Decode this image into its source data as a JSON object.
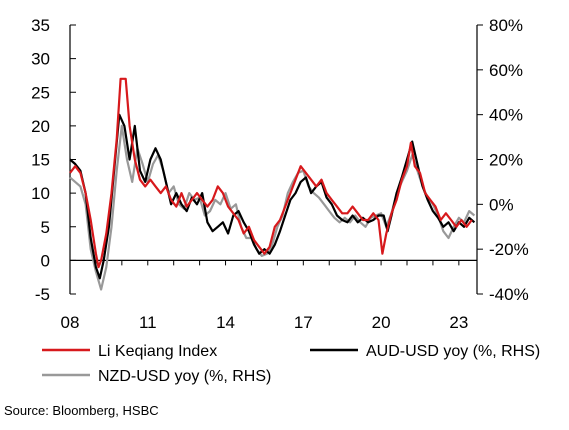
{
  "chart_data": {
    "type": "line",
    "x_tick_labels": [
      "08",
      "11",
      "14",
      "17",
      "20",
      "23"
    ],
    "x_tick_years": [
      2008,
      2011,
      2014,
      2017,
      2020,
      2023
    ],
    "xlim": [
      2008,
      2023.7
    ],
    "left_axis": {
      "ylim": [
        -5,
        35
      ],
      "ticks": [
        -5,
        0,
        5,
        10,
        15,
        20,
        25,
        30,
        35
      ],
      "tick_labels": [
        "-5",
        "0",
        "5",
        "10",
        "15",
        "20",
        "25",
        "30",
        "35"
      ]
    },
    "right_axis": {
      "ylim": [
        -40,
        80
      ],
      "ticks": [
        -40,
        -20,
        0,
        20,
        40,
        60,
        80
      ],
      "tick_labels": [
        "-40%",
        "-20%",
        "0%",
        "20%",
        "40%",
        "60%",
        "80%"
      ]
    },
    "grid": false,
    "legend_position": "bottom",
    "source": "Source: Bloomberg, HSBC",
    "series": [
      {
        "name": "Li Keqiang Index",
        "axis": "left",
        "color": "#d7191c",
        "points": [
          [
            2008.0,
            13
          ],
          [
            2008.2,
            14
          ],
          [
            2008.4,
            13
          ],
          [
            2008.6,
            10
          ],
          [
            2008.8,
            6
          ],
          [
            2009.0,
            1
          ],
          [
            2009.1,
            -1
          ],
          [
            2009.2,
            0
          ],
          [
            2009.4,
            4
          ],
          [
            2009.6,
            10
          ],
          [
            2009.8,
            18
          ],
          [
            2009.95,
            27
          ],
          [
            2010.15,
            27
          ],
          [
            2010.3,
            20
          ],
          [
            2010.5,
            15
          ],
          [
            2010.7,
            12
          ],
          [
            2010.9,
            11
          ],
          [
            2011.1,
            12
          ],
          [
            2011.3,
            11
          ],
          [
            2011.5,
            10
          ],
          [
            2011.7,
            11
          ],
          [
            2011.9,
            9
          ],
          [
            2012.1,
            8
          ],
          [
            2012.3,
            10
          ],
          [
            2012.5,
            8
          ],
          [
            2012.7,
            9
          ],
          [
            2012.9,
            10
          ],
          [
            2013.1,
            9
          ],
          [
            2013.3,
            8
          ],
          [
            2013.5,
            9
          ],
          [
            2013.7,
            11
          ],
          [
            2013.9,
            10
          ],
          [
            2014.1,
            8
          ],
          [
            2014.3,
            7
          ],
          [
            2014.5,
            6
          ],
          [
            2014.7,
            4
          ],
          [
            2014.9,
            5
          ],
          [
            2015.1,
            3
          ],
          [
            2015.3,
            2
          ],
          [
            2015.5,
            1
          ],
          [
            2015.7,
            2
          ],
          [
            2015.9,
            5
          ],
          [
            2016.1,
            6
          ],
          [
            2016.3,
            8
          ],
          [
            2016.5,
            10
          ],
          [
            2016.7,
            12
          ],
          [
            2016.9,
            14
          ],
          [
            2017.1,
            13
          ],
          [
            2017.3,
            12
          ],
          [
            2017.5,
            11
          ],
          [
            2017.7,
            12
          ],
          [
            2017.9,
            10
          ],
          [
            2018.1,
            9
          ],
          [
            2018.3,
            8
          ],
          [
            2018.5,
            7
          ],
          [
            2018.7,
            7
          ],
          [
            2018.9,
            8
          ],
          [
            2019.1,
            7
          ],
          [
            2019.3,
            6
          ],
          [
            2019.5,
            6
          ],
          [
            2019.7,
            7
          ],
          [
            2019.9,
            6
          ],
          [
            2020.05,
            1
          ],
          [
            2020.2,
            4
          ],
          [
            2020.4,
            7
          ],
          [
            2020.6,
            9
          ],
          [
            2020.8,
            12
          ],
          [
            2021.0,
            14
          ],
          [
            2021.15,
            17.5
          ],
          [
            2021.3,
            14
          ],
          [
            2021.5,
            13
          ],
          [
            2021.7,
            10
          ],
          [
            2021.9,
            9
          ],
          [
            2022.1,
            8
          ],
          [
            2022.3,
            6
          ],
          [
            2022.5,
            7
          ],
          [
            2022.7,
            6
          ],
          [
            2022.9,
            5
          ],
          [
            2023.1,
            6
          ],
          [
            2023.3,
            5
          ],
          [
            2023.5,
            6
          ]
        ]
      },
      {
        "name": "AUD-USD yoy (%, RHS)",
        "axis": "right",
        "color": "#000000",
        "points": [
          [
            2008.0,
            20
          ],
          [
            2008.2,
            18
          ],
          [
            2008.4,
            15
          ],
          [
            2008.6,
            5
          ],
          [
            2008.8,
            -15
          ],
          [
            2009.0,
            -28
          ],
          [
            2009.15,
            -33
          ],
          [
            2009.3,
            -25
          ],
          [
            2009.5,
            -10
          ],
          [
            2009.7,
            15
          ],
          [
            2009.9,
            40
          ],
          [
            2010.1,
            35
          ],
          [
            2010.3,
            20
          ],
          [
            2010.5,
            35
          ],
          [
            2010.7,
            15
          ],
          [
            2010.9,
            10
          ],
          [
            2011.1,
            20
          ],
          [
            2011.3,
            25
          ],
          [
            2011.5,
            20
          ],
          [
            2011.7,
            10
          ],
          [
            2011.9,
            0
          ],
          [
            2012.1,
            5
          ],
          [
            2012.3,
            0
          ],
          [
            2012.5,
            -3
          ],
          [
            2012.7,
            3
          ],
          [
            2012.9,
            0
          ],
          [
            2013.1,
            5
          ],
          [
            2013.3,
            -8
          ],
          [
            2013.5,
            -12
          ],
          [
            2013.7,
            -10
          ],
          [
            2013.9,
            -8
          ],
          [
            2014.1,
            -13
          ],
          [
            2014.3,
            -5
          ],
          [
            2014.5,
            -3
          ],
          [
            2014.7,
            -8
          ],
          [
            2014.9,
            -12
          ],
          [
            2015.1,
            -18
          ],
          [
            2015.3,
            -22
          ],
          [
            2015.5,
            -20
          ],
          [
            2015.7,
            -22
          ],
          [
            2015.9,
            -18
          ],
          [
            2016.1,
            -12
          ],
          [
            2016.3,
            -5
          ],
          [
            2016.5,
            2
          ],
          [
            2016.7,
            5
          ],
          [
            2016.9,
            10
          ],
          [
            2017.1,
            12
          ],
          [
            2017.3,
            5
          ],
          [
            2017.5,
            8
          ],
          [
            2017.7,
            10
          ],
          [
            2017.9,
            3
          ],
          [
            2018.1,
            0
          ],
          [
            2018.3,
            -5
          ],
          [
            2018.5,
            -7
          ],
          [
            2018.7,
            -8
          ],
          [
            2018.9,
            -5
          ],
          [
            2019.1,
            -8
          ],
          [
            2019.3,
            -6
          ],
          [
            2019.5,
            -8
          ],
          [
            2019.7,
            -7
          ],
          [
            2019.9,
            -5
          ],
          [
            2020.1,
            -5
          ],
          [
            2020.25,
            -12
          ],
          [
            2020.4,
            -5
          ],
          [
            2020.6,
            5
          ],
          [
            2020.8,
            12
          ],
          [
            2021.0,
            20
          ],
          [
            2021.2,
            28
          ],
          [
            2021.4,
            18
          ],
          [
            2021.6,
            8
          ],
          [
            2021.8,
            2
          ],
          [
            2022.0,
            -3
          ],
          [
            2022.2,
            -6
          ],
          [
            2022.4,
            -10
          ],
          [
            2022.6,
            -8
          ],
          [
            2022.8,
            -12
          ],
          [
            2023.0,
            -8
          ],
          [
            2023.2,
            -10
          ],
          [
            2023.4,
            -6
          ],
          [
            2023.6,
            -8
          ]
        ]
      },
      {
        "name": "NZD-USD yoy (%, RHS)",
        "axis": "right",
        "color": "#999999",
        "points": [
          [
            2008.0,
            12
          ],
          [
            2008.2,
            10
          ],
          [
            2008.4,
            8
          ],
          [
            2008.6,
            0
          ],
          [
            2008.8,
            -20
          ],
          [
            2009.0,
            -30
          ],
          [
            2009.2,
            -38
          ],
          [
            2009.4,
            -28
          ],
          [
            2009.6,
            -10
          ],
          [
            2009.8,
            15
          ],
          [
            2010.0,
            35
          ],
          [
            2010.2,
            20
          ],
          [
            2010.4,
            10
          ],
          [
            2010.6,
            25
          ],
          [
            2010.8,
            18
          ],
          [
            2011.0,
            10
          ],
          [
            2011.2,
            18
          ],
          [
            2011.4,
            22
          ],
          [
            2011.6,
            15
          ],
          [
            2011.8,
            5
          ],
          [
            2012.0,
            8
          ],
          [
            2012.2,
            0
          ],
          [
            2012.4,
            -2
          ],
          [
            2012.6,
            5
          ],
          [
            2012.8,
            2
          ],
          [
            2013.0,
            3
          ],
          [
            2013.2,
            -5
          ],
          [
            2013.4,
            -3
          ],
          [
            2013.6,
            2
          ],
          [
            2013.8,
            0
          ],
          [
            2014.0,
            5
          ],
          [
            2014.2,
            -2
          ],
          [
            2014.4,
            0
          ],
          [
            2014.6,
            -10
          ],
          [
            2014.8,
            -15
          ],
          [
            2015.0,
            -15
          ],
          [
            2015.2,
            -20
          ],
          [
            2015.4,
            -23
          ],
          [
            2015.6,
            -22
          ],
          [
            2015.8,
            -18
          ],
          [
            2016.0,
            -10
          ],
          [
            2016.2,
            -5
          ],
          [
            2016.4,
            5
          ],
          [
            2016.6,
            10
          ],
          [
            2016.8,
            14
          ],
          [
            2017.0,
            15
          ],
          [
            2017.2,
            8
          ],
          [
            2017.4,
            5
          ],
          [
            2017.6,
            3
          ],
          [
            2017.8,
            0
          ],
          [
            2018.0,
            -3
          ],
          [
            2018.2,
            -6
          ],
          [
            2018.4,
            -8
          ],
          [
            2018.6,
            -6
          ],
          [
            2018.8,
            -8
          ],
          [
            2019.0,
            -5
          ],
          [
            2019.2,
            -8
          ],
          [
            2019.4,
            -10
          ],
          [
            2019.6,
            -6
          ],
          [
            2019.8,
            -5
          ],
          [
            2020.0,
            -4
          ],
          [
            2020.2,
            -10
          ],
          [
            2020.4,
            -4
          ],
          [
            2020.6,
            5
          ],
          [
            2020.8,
            10
          ],
          [
            2021.0,
            15
          ],
          [
            2021.2,
            22
          ],
          [
            2021.4,
            15
          ],
          [
            2021.6,
            8
          ],
          [
            2021.8,
            3
          ],
          [
            2022.0,
            0
          ],
          [
            2022.2,
            -5
          ],
          [
            2022.4,
            -12
          ],
          [
            2022.6,
            -15
          ],
          [
            2022.8,
            -10
          ],
          [
            2023.0,
            -6
          ],
          [
            2023.2,
            -8
          ],
          [
            2023.4,
            -3
          ],
          [
            2023.6,
            -5
          ]
        ]
      }
    ]
  }
}
